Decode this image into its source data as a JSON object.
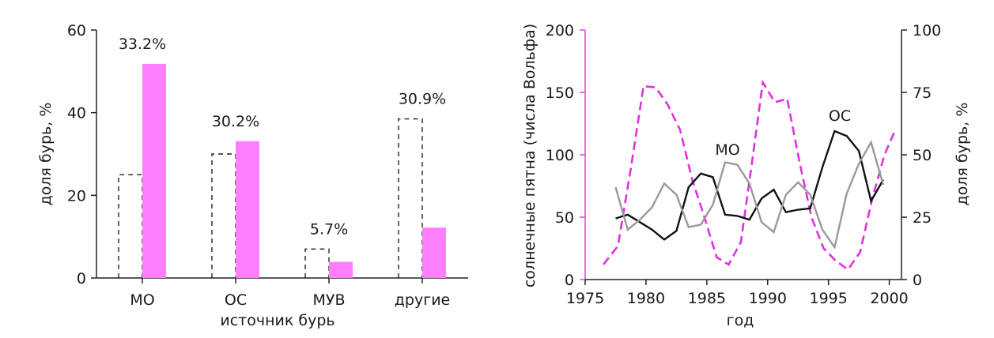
{
  "chart_data": [
    {
      "type": "bar",
      "xlabel": "источник бурь",
      "ylabel": "доля бурь, %",
      "ylim": [
        0,
        60
      ],
      "yticks": [
        "0",
        "20",
        "40",
        "60"
      ],
      "categories": [
        "МО",
        "ОС",
        "МУВ",
        "другие"
      ],
      "series": [
        {
          "style": "dashed-outline",
          "color": "#222222",
          "values": [
            25,
            30,
            7,
            38.5
          ]
        },
        {
          "style": "filled",
          "color": "#ff80ff",
          "values": [
            51.8,
            33.1,
            3.9,
            12.2
          ]
        }
      ],
      "annotations": [
        "33.2%",
        "30.2%",
        "5.7%",
        "30.9%"
      ]
    },
    {
      "type": "line",
      "xlabel": "год",
      "ylabel_left": "солнечные пятна (числа Вольфа)",
      "ylabel_right": "доля бурь, %",
      "xlim": [
        1975,
        2001
      ],
      "xticks": [
        "1975",
        "1980",
        "1985",
        "1990",
        "1995",
        "2000"
      ],
      "ylim_left": [
        0,
        200
      ],
      "yticks_left": [
        "0",
        "50",
        "100",
        "150",
        "200"
      ],
      "ylim_right": [
        0,
        100
      ],
      "yticks_right": [
        "0",
        "25",
        "50",
        "75",
        "100"
      ],
      "axis_color_left": "#e040e0",
      "series": [
        {
          "axis": "left",
          "style": "dashed",
          "color": "#e030e0",
          "x": [
            1976.5,
            1977.7,
            1978.8,
            1979.8,
            1980.8,
            1981.8,
            1982.8,
            1983.8,
            1984.8,
            1985.8,
            1986.8,
            1987.8,
            1988.8,
            1989.6,
            1990.6,
            1991.6,
            1992.6,
            1993.6,
            1994.6,
            1995.6,
            1996.6,
            1997.6,
            1998.6,
            1999.6,
            2000.5
          ],
          "y": [
            12,
            27,
            92,
            155,
            154,
            140,
            120,
            80,
            50,
            18,
            12,
            30,
            100,
            158,
            142,
            145,
            95,
            50,
            25,
            15,
            8,
            22,
            65,
            100,
            120
          ]
        },
        {
          "axis": "right",
          "style": "solid",
          "color": "#111111",
          "label": "ОС",
          "x": [
            1977.5,
            1978.5,
            1979.5,
            1980.5,
            1981.5,
            1982.5,
            1983.5,
            1984.5,
            1985.5,
            1986.5,
            1987.5,
            1988.5,
            1989.5,
            1990.5,
            1991.5,
            1992.5,
            1993.5,
            1994.5,
            1995.5,
            1996.5,
            1997.5,
            1998.5,
            1999.5
          ],
          "y": [
            24.5,
            26,
            23,
            20,
            16,
            19.5,
            37,
            42.5,
            41,
            26,
            25.5,
            24,
            32.5,
            36,
            27,
            28,
            28.5,
            45,
            59.5,
            57.5,
            51.5,
            31.5,
            40
          ]
        },
        {
          "axis": "right",
          "style": "solid",
          "color": "#999999",
          "label": "МО",
          "x": [
            1977.5,
            1978.5,
            1979.5,
            1980.5,
            1981.5,
            1982.5,
            1983.5,
            1984.5,
            1985.5,
            1986.5,
            1987.5,
            1988.5,
            1989.5,
            1990.5,
            1991.5,
            1992.5,
            1993.5,
            1994.5,
            1995.5,
            1996.5,
            1997.5,
            1998.5,
            1999.5
          ],
          "y": [
            37,
            20,
            24,
            29,
            38.5,
            34,
            21,
            22,
            30,
            47,
            46,
            38.5,
            23,
            19,
            34,
            39,
            34,
            20,
            13,
            34.5,
            46.5,
            55,
            38
          ]
        }
      ]
    }
  ]
}
